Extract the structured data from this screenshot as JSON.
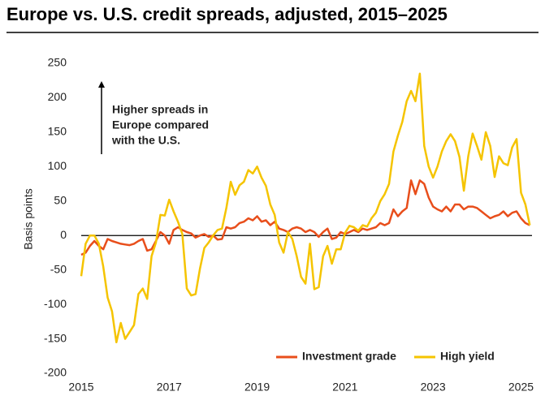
{
  "chart_data": {
    "type": "line",
    "title": "Europe vs. U.S. credit spreads, adjusted, 2015–2025",
    "ylabel": "Basis points",
    "annotation": [
      "Higher spreads in",
      "Europe compared",
      "with the U.S."
    ],
    "x": [
      2015.0,
      2015.1,
      2015.2,
      2015.3,
      2015.4,
      2015.5,
      2015.6,
      2015.7,
      2015.8,
      2015.9,
      2016.0,
      2016.1,
      2016.2,
      2016.3,
      2016.4,
      2016.5,
      2016.6,
      2016.7,
      2016.8,
      2016.9,
      2017.0,
      2017.1,
      2017.2,
      2017.3,
      2017.4,
      2017.5,
      2017.6,
      2017.7,
      2017.8,
      2017.9,
      2018.0,
      2018.1,
      2018.2,
      2018.3,
      2018.4,
      2018.5,
      2018.6,
      2018.7,
      2018.8,
      2018.9,
      2019.0,
      2019.1,
      2019.2,
      2019.3,
      2019.4,
      2019.5,
      2019.6,
      2019.7,
      2019.8,
      2019.9,
      2020.0,
      2020.1,
      2020.2,
      2020.3,
      2020.4,
      2020.5,
      2020.6,
      2020.7,
      2020.8,
      2020.9,
      2021.0,
      2021.1,
      2021.2,
      2021.3,
      2021.4,
      2021.5,
      2021.6,
      2021.7,
      2021.8,
      2021.9,
      2022.0,
      2022.1,
      2022.2,
      2022.3,
      2022.4,
      2022.5,
      2022.6,
      2022.7,
      2022.8,
      2022.9,
      2023.0,
      2023.1,
      2023.2,
      2023.3,
      2023.4,
      2023.5,
      2023.6,
      2023.7,
      2023.8,
      2023.9,
      2024.0,
      2024.1,
      2024.2,
      2024.3,
      2024.4,
      2024.5,
      2024.6,
      2024.7,
      2024.8,
      2024.9,
      2025.0,
      2025.1,
      2025.2
    ],
    "series": [
      {
        "name": "Investment grade",
        "color": "#e84e1b",
        "values": [
          -28,
          -25,
          -15,
          -8,
          -15,
          -20,
          -5,
          -8,
          -10,
          -12,
          -13,
          -14,
          -12,
          -8,
          -5,
          -22,
          -20,
          -8,
          5,
          0,
          -12,
          8,
          12,
          8,
          5,
          3,
          -3,
          0,
          2,
          -2,
          0,
          -6,
          -5,
          12,
          10,
          12,
          18,
          20,
          25,
          22,
          28,
          20,
          22,
          15,
          20,
          10,
          8,
          5,
          10,
          12,
          10,
          5,
          8,
          5,
          -2,
          5,
          10,
          -5,
          -3,
          5,
          2,
          5,
          8,
          5,
          10,
          8,
          10,
          12,
          18,
          15,
          18,
          38,
          28,
          35,
          40,
          80,
          60,
          80,
          75,
          55,
          42,
          38,
          35,
          42,
          35,
          45,
          45,
          38,
          42,
          42,
          40,
          35,
          30,
          25,
          28,
          30,
          35,
          28,
          33,
          35,
          25,
          18,
          15
        ]
      },
      {
        "name": "High yield",
        "color": "#f5c400",
        "values": [
          -59,
          -12,
          0,
          0,
          -12,
          -45,
          -90,
          -110,
          -155,
          -127,
          -150,
          -140,
          -130,
          -85,
          -77,
          -92,
          -30,
          -10,
          30,
          29,
          52,
          35,
          20,
          2,
          -77,
          -87,
          -85,
          -48,
          -18,
          -10,
          0,
          8,
          10,
          40,
          78,
          59,
          73,
          78,
          95,
          90,
          100,
          84,
          72,
          45,
          30,
          -10,
          -25,
          5,
          -5,
          -30,
          -60,
          -70,
          -12,
          -78,
          -75,
          -30,
          -15,
          -41,
          -20,
          -20,
          4,
          14,
          12,
          7,
          15,
          13,
          25,
          33,
          50,
          60,
          75,
          122,
          145,
          165,
          195,
          210,
          195,
          235,
          130,
          100,
          84,
          100,
          122,
          137,
          147,
          137,
          114,
          65,
          115,
          148,
          130,
          110,
          150,
          130,
          85,
          115,
          105,
          102,
          128,
          140,
          62,
          45,
          15
        ]
      }
    ],
    "xlim": [
      2015,
      2025.25
    ],
    "xticks": [
      2015,
      2017,
      2019,
      2021,
      2023,
      2025
    ],
    "ylim": [
      -200,
      250
    ],
    "yticks": [
      -200,
      -150,
      -100,
      -50,
      0,
      50,
      100,
      150,
      200,
      250
    ],
    "grid": false,
    "legend": "lower right"
  }
}
